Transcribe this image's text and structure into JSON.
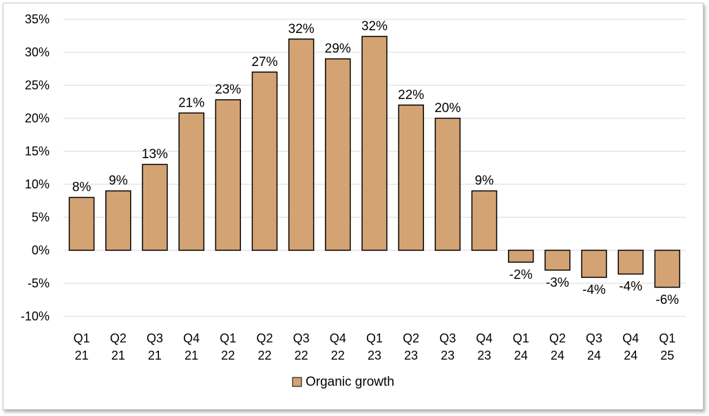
{
  "chart_data": {
    "type": "bar",
    "categories": [
      "Q1 21",
      "Q2 21",
      "Q3 21",
      "Q4 21",
      "Q1 22",
      "Q2 22",
      "Q3 22",
      "Q4 22",
      "Q1 23",
      "Q2 23",
      "Q3 23",
      "Q4 23",
      "Q1 24",
      "Q2 24",
      "Q3 24",
      "Q4 24",
      "Q1 25"
    ],
    "category_lines": [
      [
        "Q1",
        "21"
      ],
      [
        "Q2",
        "21"
      ],
      [
        "Q3",
        "21"
      ],
      [
        "Q4",
        "21"
      ],
      [
        "Q1",
        "22"
      ],
      [
        "Q2",
        "22"
      ],
      [
        "Q3",
        "22"
      ],
      [
        "Q4",
        "22"
      ],
      [
        "Q1",
        "23"
      ],
      [
        "Q2",
        "23"
      ],
      [
        "Q3",
        "23"
      ],
      [
        "Q4",
        "23"
      ],
      [
        "Q1",
        "24"
      ],
      [
        "Q2",
        "24"
      ],
      [
        "Q3",
        "24"
      ],
      [
        "Q4",
        "24"
      ],
      [
        "Q1",
        "25"
      ]
    ],
    "series": [
      {
        "name": "Organic growth",
        "values": [
          8,
          9,
          13,
          20.8,
          22.8,
          27,
          32,
          29,
          32.4,
          22,
          20,
          9,
          -1.8,
          -3,
          -4.1,
          -3.6,
          -5.6
        ],
        "data_labels": [
          "8%",
          "9%",
          "13%",
          "21%",
          "23%",
          "27%",
          "32%",
          "29%",
          "32%",
          "22%",
          "20%",
          "9%",
          "-2%",
          "-3%",
          "-4%",
          "-4%",
          "-6%"
        ],
        "color": "#d4a373"
      }
    ],
    "title": "",
    "xlabel": "",
    "ylabel": "",
    "ylim": [
      -10,
      35
    ],
    "yticks": [
      35,
      30,
      25,
      20,
      15,
      10,
      5,
      0,
      -5,
      -10
    ],
    "ytick_labels": [
      "35%",
      "30%",
      "25%",
      "20%",
      "15%",
      "10%",
      "5%",
      "0%",
      "-5%",
      "-10%"
    ],
    "grid": true,
    "legend_position": "bottom",
    "colors": {
      "bar_fill": "#d4a373",
      "bar_stroke": "#000000",
      "grid": "#d9d9d9"
    }
  }
}
